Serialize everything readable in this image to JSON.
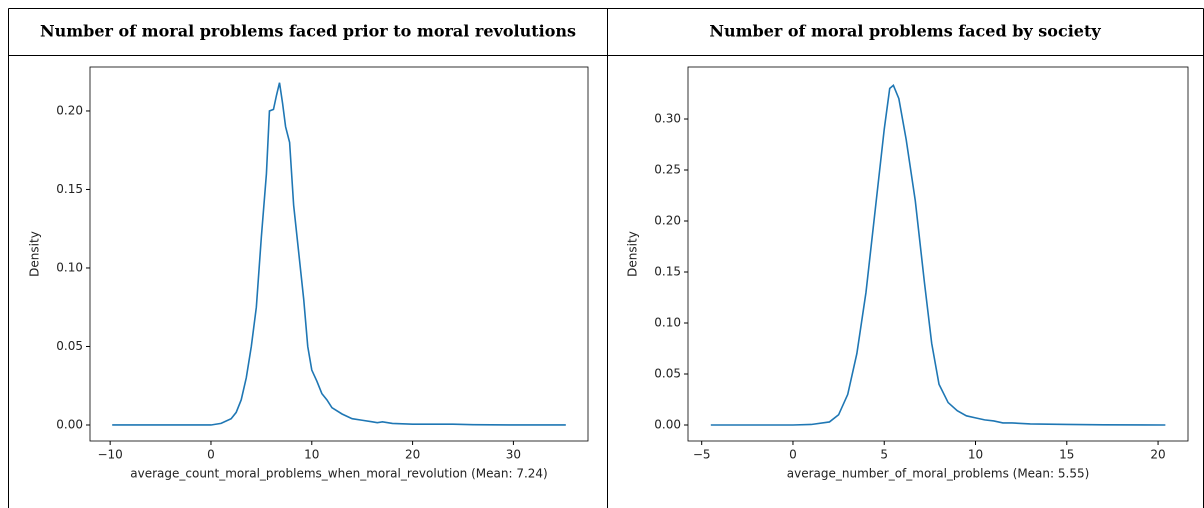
{
  "chart_data": [
    {
      "type": "line",
      "title": "Number of moral problems faced prior to moral revolutions",
      "xlabel": "average_count_moral_problems_when_moral_revolution (Mean: 7.24)",
      "ylabel": "Density",
      "x": [
        -9.8,
        0,
        1,
        2,
        2.5,
        3,
        3.5,
        4,
        4.5,
        5,
        5.5,
        5.8,
        6.2,
        6.5,
        6.8,
        7.1,
        7.4,
        7.8,
        8.2,
        8.7,
        9.2,
        9.6,
        10,
        10.5,
        11,
        11.5,
        12,
        13,
        14,
        15,
        16,
        16.5,
        17,
        18,
        20,
        22,
        24,
        26,
        30,
        35.2
      ],
      "values": [
        0,
        0,
        0.001,
        0.004,
        0.008,
        0.016,
        0.03,
        0.05,
        0.075,
        0.12,
        0.16,
        0.2,
        0.201,
        0.21,
        0.218,
        0.205,
        0.19,
        0.18,
        0.14,
        0.11,
        0.08,
        0.05,
        0.035,
        0.028,
        0.02,
        0.016,
        0.011,
        0.007,
        0.004,
        0.003,
        0.002,
        0.0015,
        0.002,
        0.001,
        0.0005,
        0.0005,
        0.0005,
        0.0002,
        0,
        0
      ],
      "color": "#1f77b4",
      "xlim": [
        -12,
        37.4
      ],
      "ylim": [
        -0.0102,
        0.228
      ],
      "xticks": [
        {
          "value": -10,
          "label": "−10"
        },
        0,
        10,
        20,
        30
      ],
      "yticks": [
        {
          "value": 0,
          "label": "0.00"
        },
        0.05,
        {
          "value": 0.1,
          "label": "0.10"
        },
        0.15,
        {
          "value": 0.2,
          "label": "0.20"
        }
      ]
    },
    {
      "type": "line",
      "title": "Number of moral problems faced by society",
      "xlabel": "average_number_of_moral_problems (Mean: 5.55)",
      "ylabel": "Density",
      "x": [
        -4.5,
        0,
        1,
        2,
        2.5,
        3,
        3.5,
        4,
        4.5,
        5,
        5.3,
        5.5,
        5.8,
        6.2,
        6.7,
        7.2,
        7.6,
        8,
        8.5,
        9,
        9.5,
        10,
        10.5,
        11,
        11.5,
        12,
        13,
        15,
        17,
        20.4
      ],
      "values": [
        0,
        0,
        0.0005,
        0.003,
        0.01,
        0.03,
        0.07,
        0.13,
        0.21,
        0.29,
        0.33,
        0.333,
        0.32,
        0.28,
        0.22,
        0.14,
        0.08,
        0.04,
        0.022,
        0.014,
        0.009,
        0.007,
        0.005,
        0.004,
        0.002,
        0.002,
        0.001,
        0.0005,
        0.0002,
        0
      ],
      "color": "#1f77b4",
      "xlim": [
        -5.75,
        21.64
      ],
      "ylim": [
        -0.0157,
        0.351
      ],
      "xticks": [
        {
          "value": -5,
          "label": "−5"
        },
        0,
        5,
        10,
        15,
        20
      ],
      "yticks": [
        {
          "value": 0,
          "label": "0.00"
        },
        0.05,
        {
          "value": 0.1,
          "label": "0.10"
        },
        0.15,
        {
          "value": 0.2,
          "label": "0.20"
        },
        0.25,
        {
          "value": 0.3,
          "label": "0.30"
        }
      ]
    }
  ]
}
